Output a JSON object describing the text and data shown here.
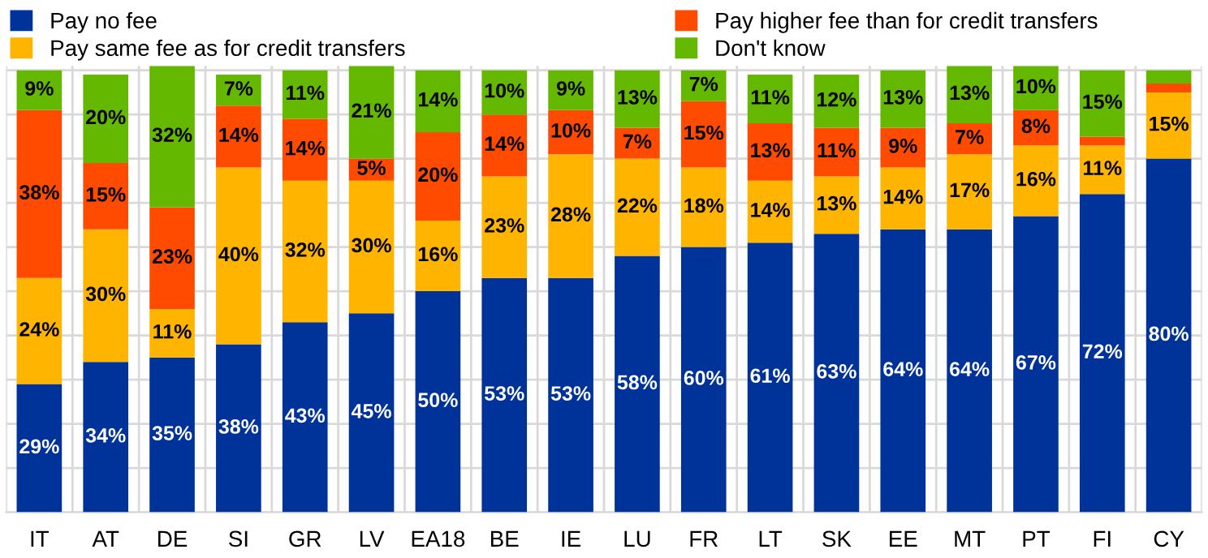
{
  "chart_data": {
    "type": "bar",
    "stacked": true,
    "categories": [
      "IT",
      "AT",
      "DE",
      "SI",
      "GR",
      "LV",
      "EA18",
      "BE",
      "IE",
      "LU",
      "FR",
      "LT",
      "SK",
      "EE",
      "MT",
      "PT",
      "FI",
      "CY"
    ],
    "series": [
      {
        "name": "Pay no fee",
        "color": "#003399",
        "values": [
          29,
          34,
          35,
          38,
          43,
          45,
          50,
          53,
          53,
          58,
          60,
          61,
          63,
          64,
          64,
          67,
          72,
          80
        ],
        "value_labels": [
          "29%",
          "34%",
          "35%",
          "38%",
          "43%",
          "45%",
          "50%",
          "53%",
          "53%",
          "58%",
          "60%",
          "61%",
          "63%",
          "64%",
          "64%",
          "67%",
          "72%",
          "80%"
        ]
      },
      {
        "name": "Pay same fee as for credit transfers",
        "color": "#ffb400",
        "values": [
          24,
          30,
          11,
          40,
          32,
          30,
          16,
          23,
          28,
          22,
          18,
          14,
          13,
          14,
          17,
          16,
          11,
          15
        ],
        "value_labels": [
          "24%",
          "30%",
          "11%",
          "40%",
          "32%",
          "30%",
          "16%",
          "23%",
          "28%",
          "22%",
          "18%",
          "14%",
          "13%",
          "14%",
          "17%",
          "16%",
          "11%",
          "15%"
        ]
      },
      {
        "name": "Pay higher fee than for credit transfers",
        "color": "#ff4b00",
        "values": [
          38,
          15,
          23,
          14,
          14,
          5,
          20,
          14,
          10,
          7,
          15,
          13,
          11,
          9,
          7,
          8,
          2,
          2
        ],
        "value_labels": [
          "38%",
          "15%",
          "23%",
          "14%",
          "14%",
          "5%",
          "20%",
          "14%",
          "10%",
          "7%",
          "15%",
          "13%",
          "11%",
          "9%",
          "7%",
          "8%",
          null,
          null
        ]
      },
      {
        "name": "Don't know",
        "color": "#65b800",
        "values": [
          9,
          20,
          32,
          7,
          11,
          21,
          14,
          10,
          9,
          13,
          7,
          11,
          12,
          13,
          13,
          10,
          15,
          3
        ],
        "value_labels": [
          "9%",
          "20%",
          "32%",
          "7%",
          "11%",
          "21%",
          "14%",
          "10%",
          "9%",
          "13%",
          "7%",
          "11%",
          "12%",
          "13%",
          "13%",
          "10%",
          "15%",
          null
        ]
      }
    ],
    "ylim": [
      0,
      101
    ],
    "yticks": [
      {
        "value": 0,
        "label": null
      },
      {
        "value": 10,
        "label": null
      },
      {
        "value": 20,
        "label": null
      },
      {
        "value": 30,
        "label": null
      },
      {
        "value": 40,
        "label": null
      },
      {
        "value": 50,
        "label": null
      },
      {
        "value": 60,
        "label": null
      },
      {
        "value": 70,
        "label": null
      },
      {
        "value": 80,
        "label": null
      },
      {
        "value": 90,
        "label": null
      },
      {
        "value": 100,
        "label": null
      }
    ],
    "tick_labels": "x",
    "grid": true,
    "legend": "top"
  }
}
